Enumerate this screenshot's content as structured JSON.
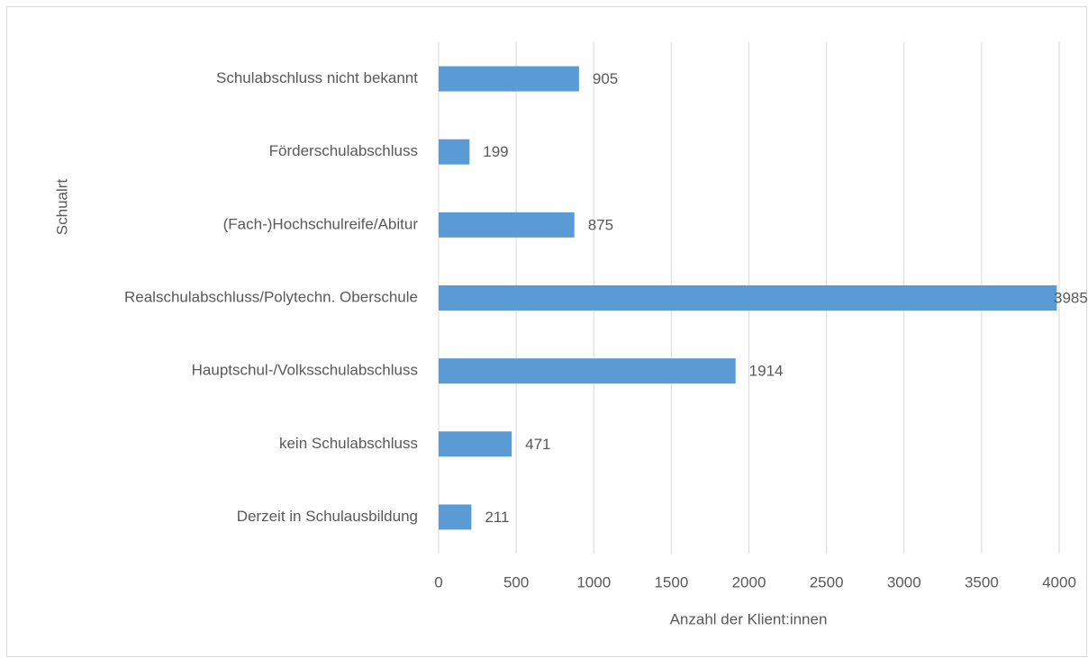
{
  "chart_data": {
    "type": "bar",
    "orientation": "horizontal",
    "categories": [
      "Schulabschluss nicht bekannt",
      "Förderschulabschluss",
      "(Fach-)Hochschulreife/Abitur",
      "Realschulabschluss/Polytechn. Oberschule",
      "Hauptschul-/Volksschulabschluss",
      "kein Schulabschluss",
      "Derzeit in Schulausbildung"
    ],
    "values": [
      905,
      199,
      875,
      3985,
      1914,
      471,
      211
    ],
    "color": "#5b9bd5",
    "x_label": "Anzahl der Klient:innen",
    "y_label": "Schualrt",
    "xlim": [
      0,
      4000
    ],
    "xticks": [
      0,
      500,
      1000,
      1500,
      2000,
      2500,
      3000,
      3500,
      4000
    ],
    "grid": true
  }
}
